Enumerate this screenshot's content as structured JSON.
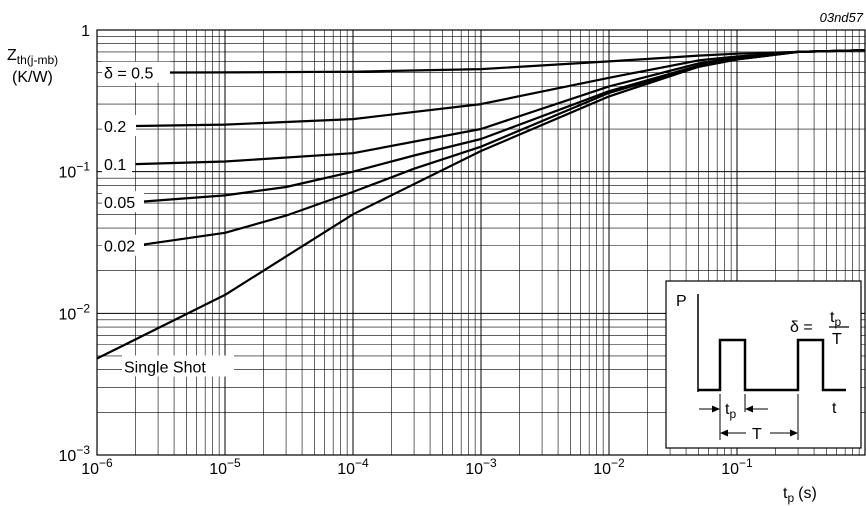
{
  "figure_code": "03nd57",
  "chart_data": {
    "type": "line",
    "x_scale": "log",
    "y_scale": "log",
    "xlim": [
      1e-06,
      1
    ],
    "ylim": [
      0.001,
      1
    ],
    "grid": true,
    "ylabel": {
      "main": "Z",
      "sub": "th(j-mb)",
      "unit": "(K/W)"
    },
    "xlabel": {
      "main": "t",
      "sub": "p",
      "unit": "(s)"
    },
    "x_ticks": [
      {
        "value": 1e-06,
        "base": "10",
        "exp": "−6"
      },
      {
        "value": 1e-05,
        "base": "10",
        "exp": "−5"
      },
      {
        "value": 0.0001,
        "base": "10",
        "exp": "−4"
      },
      {
        "value": 0.001,
        "base": "10",
        "exp": "−3"
      },
      {
        "value": 0.01,
        "base": "10",
        "exp": "−2"
      },
      {
        "value": 0.1,
        "base": "10",
        "exp": "−1"
      }
    ],
    "y_ticks": [
      {
        "value": 1,
        "base": "1",
        "exp": ""
      },
      {
        "value": 0.1,
        "base": "10",
        "exp": "−1"
      },
      {
        "value": 0.01,
        "base": "10",
        "exp": "−2"
      },
      {
        "value": 0.001,
        "base": "10",
        "exp": "−3"
      }
    ],
    "series": [
      {
        "name": "δ = 0.5",
        "x": [
          2e-06,
          1e-05,
          0.0001,
          0.001,
          0.01,
          0.05,
          0.1,
          0.3,
          1
        ],
        "y": [
          0.5,
          0.502,
          0.508,
          0.53,
          0.6,
          0.66,
          0.68,
          0.7,
          0.72
        ]
      },
      {
        "name": "0.2",
        "x": [
          2e-06,
          1e-05,
          0.0001,
          0.001,
          0.01,
          0.05,
          0.1,
          0.3,
          1
        ],
        "y": [
          0.21,
          0.215,
          0.235,
          0.3,
          0.46,
          0.61,
          0.65,
          0.7,
          0.72
        ]
      },
      {
        "name": "0.1",
        "x": [
          2e-06,
          1e-05,
          0.0001,
          0.001,
          0.01,
          0.05,
          0.1,
          0.3,
          1
        ],
        "y": [
          0.113,
          0.118,
          0.135,
          0.2,
          0.4,
          0.58,
          0.64,
          0.7,
          0.72
        ]
      },
      {
        "name": "0.05",
        "x": [
          2e-06,
          1e-05,
          3e-05,
          0.0001,
          0.0003,
          0.001,
          0.01,
          0.05,
          0.1,
          0.3,
          1
        ],
        "y": [
          0.061,
          0.068,
          0.078,
          0.1,
          0.13,
          0.17,
          0.37,
          0.56,
          0.63,
          0.7,
          0.72
        ]
      },
      {
        "name": "0.02",
        "x": [
          2e-06,
          1e-05,
          3e-05,
          0.0001,
          0.0003,
          0.001,
          0.01,
          0.05,
          0.1,
          0.3,
          1
        ],
        "y": [
          0.03,
          0.037,
          0.049,
          0.072,
          0.105,
          0.15,
          0.36,
          0.55,
          0.62,
          0.7,
          0.72
        ]
      },
      {
        "name": "Single Shot",
        "x": [
          1e-06,
          1e-05,
          0.0001,
          0.001,
          0.01,
          0.05,
          0.1,
          0.3,
          1
        ],
        "y": [
          0.0048,
          0.0135,
          0.05,
          0.14,
          0.34,
          0.55,
          0.62,
          0.7,
          0.72
        ]
      }
    ]
  },
  "inset": {
    "p_label": "P",
    "t_label": "t",
    "tp_main": "t",
    "tp_sub": "p",
    "period_label": "T",
    "delta_symbol": "δ =",
    "fraction_num_main": "t",
    "fraction_num_sub": "p",
    "fraction_den": "T"
  }
}
